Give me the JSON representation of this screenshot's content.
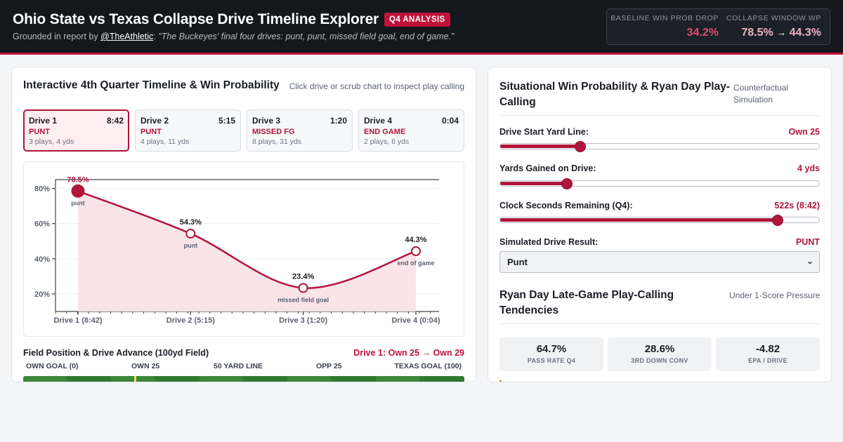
{
  "header": {
    "title": "Ohio State vs Texas Collapse Drive Timeline Explorer",
    "tag": "Q4 ANALYSIS",
    "sub_prefix": "Grounded in report by ",
    "sub_handle": "@TheAthletic",
    "sub_sep": ":",
    "sub_quote": "\"The Buckeyes' final four drives: punt, punt, missed field goal, end of game.\"",
    "kpis": [
      {
        "label": "BASELINE WIN PROB DROP",
        "value": "34.2%"
      },
      {
        "label": "COLLAPSE WINDOW WP",
        "from": "78.5%",
        "arrow": "→",
        "to": "44.3%"
      }
    ]
  },
  "timeline": {
    "title": "Interactive 4th Quarter Timeline & Win Probability",
    "hint": "Click drive or scrub chart to inspect play calling",
    "drives": [
      {
        "name": "Drive 1",
        "clock": "8:42",
        "result": "PUNT",
        "meta": "3 plays, 4 yds"
      },
      {
        "name": "Drive 2",
        "clock": "5:15",
        "result": "PUNT",
        "meta": "4 plays, 11 yds"
      },
      {
        "name": "Drive 3",
        "clock": "1:20",
        "result": "MISSED FG",
        "meta": "8 plays, 31 yds"
      },
      {
        "name": "Drive 4",
        "clock": "0:04",
        "result": "END GAME",
        "meta": "2 plays, 6 yds"
      }
    ]
  },
  "chart_data": {
    "type": "line",
    "title": "",
    "xlabel": "",
    "ylabel": "",
    "categories": [
      "Drive 1 (8:42)",
      "Drive 2 (5:15)",
      "Drive 3 (1:20)",
      "Drive 4 (0:04)"
    ],
    "series": [
      {
        "values": [
          78.5,
          54.3,
          23.4,
          44.3
        ],
        "value_labels": [
          "78.5%",
          "54.3%",
          "23.4%",
          "44.3%"
        ],
        "annotations": [
          "punt",
          "punt",
          "missed field goal",
          "end of game"
        ]
      }
    ],
    "y_ticks": [
      "20%",
      "40%",
      "60%",
      "80%"
    ],
    "y_tick_values": [
      20,
      40,
      60,
      80
    ],
    "ylim": [
      20,
      80
    ],
    "grid": true,
    "accent_color": "#b0163c",
    "fill_color": "#fbe4e9"
  },
  "field": {
    "title": "Field Position & Drive Advance (100yd Field)",
    "drive_prefix": "Drive 1: Own 25",
    "drive_arrow": "→",
    "drive_suffix": "Own 29",
    "labels": [
      "OWN GOAL (0)",
      "OWN 25",
      "50 YARD LINE",
      "OPP 25",
      "TEXAS GOAL (100)"
    ]
  },
  "simulator": {
    "title": "Situational Win Probability & Ryan Day Play-Calling",
    "hint": "Counterfactual Simulation",
    "controls": [
      {
        "label": "Drive Start Yard Line:",
        "value": "Own 25",
        "fraction": 0.25
      },
      {
        "label": "Yards Gained on Drive:",
        "value": "4 yds",
        "fraction": 0.21
      },
      {
        "label": "Clock Seconds Remaining (Q4):",
        "value": "522s (8:42)",
        "fraction": 0.87
      }
    ],
    "result_label": "Simulated Drive Result:",
    "result_value": "PUNT",
    "select_value": "Punt"
  },
  "tendencies": {
    "title": "Ryan Day Late-Game Play-Calling Tendencies",
    "hint": "Under 1-Score Pressure",
    "stats": [
      {
        "value": "64.7%",
        "label": "PASS RATE Q4"
      },
      {
        "value": "28.6%",
        "label": "3RD DOWN CONV"
      },
      {
        "value": "-4.82",
        "label": "EPA / DRIVE"
      }
    ]
  }
}
